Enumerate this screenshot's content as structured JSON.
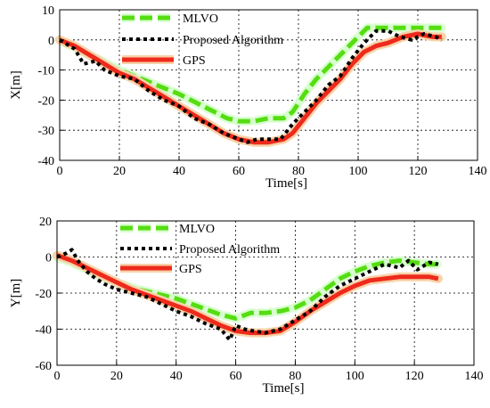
{
  "colors": {
    "mlvo": "#55dd11",
    "mlvo_halo": "#d8ffd0",
    "proposed": "#000000",
    "gps": "#ee2a1c",
    "gps_halo": "#f7d2a8",
    "grid": "#000000"
  },
  "chart_data": [
    {
      "type": "line",
      "title": "",
      "xlabel": "Time[s]",
      "ylabel": "X[m]",
      "xlim": [
        0,
        140
      ],
      "ylim": [
        -40,
        10
      ],
      "xticks": [
        0,
        20,
        40,
        60,
        80,
        100,
        120,
        140
      ],
      "yticks": [
        -40,
        -30,
        -20,
        -10,
        0,
        10
      ],
      "grid": true,
      "legend_position": "top-center",
      "series": [
        {
          "name": "MLVO",
          "style": "dashed",
          "x": [
            0,
            10,
            20,
            30,
            40,
            50,
            56,
            60,
            65,
            70,
            75,
            78,
            82,
            86,
            90,
            95,
            100,
            103,
            106,
            110,
            115,
            120,
            125,
            128
          ],
          "y": [
            0,
            -5,
            -10,
            -14,
            -18,
            -23,
            -26,
            -27,
            -27,
            -26,
            -26,
            -24,
            -18,
            -13,
            -9,
            -4,
            1,
            4,
            4,
            4,
            4,
            4,
            4,
            4
          ]
        },
        {
          "name": "Proposed Algorithm",
          "style": "dotted",
          "x": [
            0,
            5,
            8,
            12,
            15,
            20,
            25,
            30,
            35,
            40,
            45,
            50,
            55,
            60,
            63,
            66,
            70,
            74,
            78,
            82,
            86,
            90,
            94,
            98,
            102,
            106,
            110,
            114,
            118,
            122,
            126,
            128
          ],
          "y": [
            0,
            -3,
            -8,
            -7,
            -10,
            -12,
            -13,
            -17,
            -20,
            -22,
            -26,
            -28,
            -31,
            -33,
            -34,
            -33,
            -33,
            -33,
            -28,
            -24,
            -20,
            -15,
            -12,
            -6,
            -1,
            3,
            3,
            1,
            0,
            2,
            1,
            0
          ]
        },
        {
          "name": "GPS",
          "style": "solid",
          "x": [
            0,
            5,
            10,
            15,
            20,
            25,
            30,
            35,
            40,
            45,
            50,
            55,
            60,
            65,
            70,
            75,
            78,
            82,
            86,
            90,
            94,
            98,
            102,
            106,
            110,
            115,
            120,
            125,
            128
          ],
          "y": [
            0,
            -2,
            -5,
            -8,
            -11,
            -13,
            -16,
            -19,
            -22,
            -25,
            -28,
            -31,
            -33,
            -34,
            -34,
            -33,
            -31,
            -26,
            -21,
            -17,
            -13,
            -8,
            -4,
            -2,
            -1,
            1,
            2,
            1,
            1
          ]
        }
      ]
    },
    {
      "type": "line",
      "title": "",
      "xlabel": "Time[s]",
      "ylabel": "Y[m]",
      "xlim": [
        0,
        140
      ],
      "ylim": [
        -60,
        20
      ],
      "xticks": [
        0,
        20,
        40,
        60,
        80,
        100,
        120,
        140
      ],
      "yticks": [
        -60,
        -40,
        -20,
        0,
        20
      ],
      "grid": true,
      "legend_position": "top-center",
      "series": [
        {
          "name": "MLVO",
          "style": "dashed",
          "x": [
            0,
            5,
            10,
            15,
            20,
            25,
            30,
            35,
            40,
            45,
            50,
            55,
            60,
            65,
            70,
            75,
            80,
            85,
            90,
            95,
            100,
            105,
            110,
            115,
            120,
            125,
            128
          ],
          "y": [
            0,
            -3,
            -7,
            -11,
            -14,
            -17,
            -19,
            -21,
            -23,
            -26,
            -29,
            -32,
            -34,
            -31,
            -31,
            -30,
            -28,
            -24,
            -18,
            -12,
            -8,
            -5,
            -3,
            -2,
            -3,
            -4,
            -4
          ]
        },
        {
          "name": "Proposed Algorithm",
          "style": "dotted",
          "x": [
            0,
            3,
            5,
            7,
            10,
            13,
            16,
            20,
            25,
            30,
            35,
            40,
            45,
            50,
            55,
            58,
            60,
            63,
            66,
            70,
            75,
            80,
            85,
            90,
            95,
            100,
            105,
            110,
            115,
            118,
            121,
            125,
            128
          ],
          "y": [
            0,
            2,
            4,
            -2,
            -8,
            -12,
            -15,
            -18,
            -20,
            -22,
            -26,
            -30,
            -33,
            -37,
            -40,
            -46,
            -38,
            -40,
            -41,
            -42,
            -40,
            -35,
            -30,
            -22,
            -16,
            -12,
            -8,
            -4,
            -6,
            -2,
            -7,
            -3,
            -4
          ]
        },
        {
          "name": "GPS",
          "style": "solid",
          "x": [
            0,
            5,
            10,
            15,
            20,
            25,
            30,
            35,
            40,
            45,
            50,
            55,
            60,
            65,
            70,
            75,
            80,
            85,
            90,
            95,
            100,
            105,
            110,
            115,
            120,
            125,
            128
          ],
          "y": [
            1,
            -2,
            -6,
            -10,
            -14,
            -18,
            -21,
            -24,
            -27,
            -30,
            -34,
            -38,
            -41,
            -42,
            -42,
            -41,
            -36,
            -30,
            -25,
            -20,
            -16,
            -13,
            -12,
            -11,
            -11,
            -11,
            -12
          ]
        }
      ]
    }
  ]
}
